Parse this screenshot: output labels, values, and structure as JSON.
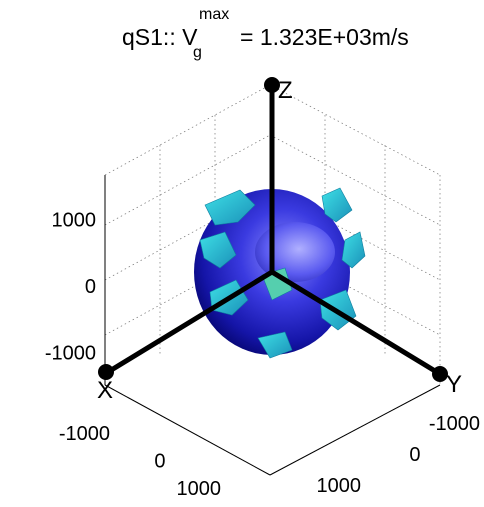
{
  "chart_data": {
    "type": "3d-surface",
    "title": {
      "prefix": "qS1:: V",
      "subscript": "g",
      "superscript": "max",
      "value": "= 1.323E+03m/s"
    },
    "vgmax_m_per_s": 1323,
    "axes": {
      "x": {
        "label": "X",
        "ticks": [
          -1000,
          0,
          1000
        ],
        "tick_labels": [
          "-1000",
          "0",
          "1000"
        ],
        "range": [
          -1500,
          1500
        ]
      },
      "y": {
        "label": "Y",
        "ticks": [
          -1000,
          0,
          1000
        ],
        "tick_labels": [
          "-1000",
          "0",
          "1000"
        ],
        "range": [
          -1500,
          1500
        ]
      },
      "z": {
        "label": "Z",
        "ticks": [
          -1000,
          0,
          1000
        ],
        "tick_labels": [
          "-1000",
          "0",
          "1000"
        ],
        "range": [
          -1500,
          1500
        ]
      }
    },
    "grid": true,
    "colors": {
      "sphere_dark": "#00005a",
      "sphere_mid": "#1a1ab8",
      "sphere_light": "#8c8cff",
      "sheet_teal": "#1ab3c4",
      "sheet_cyan": "#3ee0e6",
      "sheet_green": "#55cfae",
      "axis_line": "#000000"
    }
  }
}
